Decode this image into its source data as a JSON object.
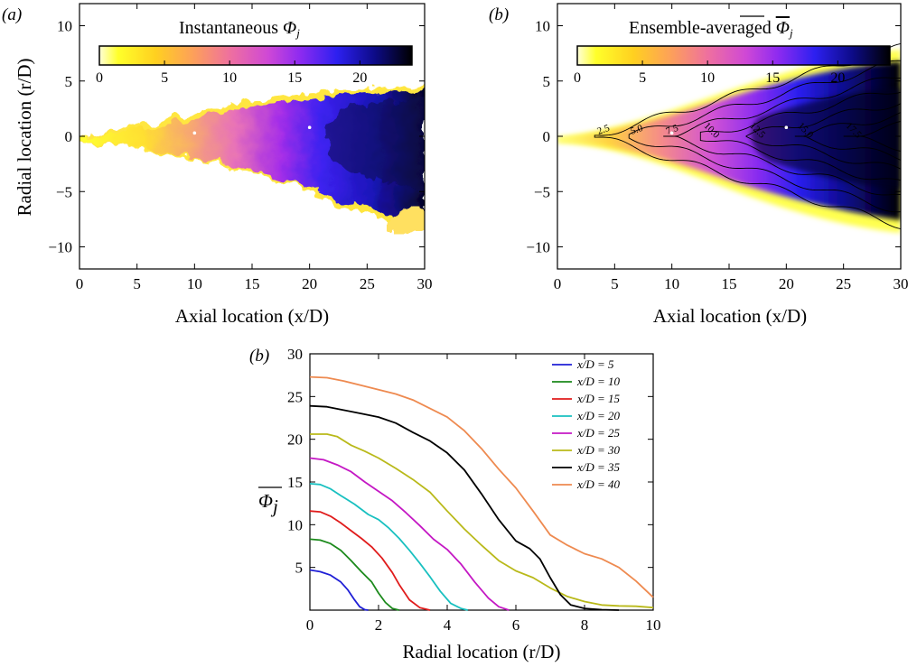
{
  "figure": {
    "panel_a": {
      "tag": "(a)",
      "colorbar_title": "Instantaneous ",
      "colorbar_symbol": "Φ",
      "colorbar_sub": "j",
      "xlabel": "Axial location (x/D)",
      "ylabel": "Radial location (r/D)"
    },
    "panel_b": {
      "tag": "(b)",
      "colorbar_title": "Ensemble-averaged ",
      "colorbar_symbol": "Φ",
      "colorbar_sub": "j",
      "xlabel": "Axial location (x/D)"
    },
    "panel_c": {
      "tag": "(b)",
      "xlabel": "Radial location (r/D)",
      "ylabel_symbol": "Φ",
      "ylabel_sub": "j"
    }
  },
  "chart_data": [
    {
      "type": "heatmap",
      "name": "Instantaneous",
      "xlim": [
        0,
        30
      ],
      "ylim": [
        -12,
        12
      ],
      "x_ticks": [
        0,
        5,
        10,
        15,
        20,
        25,
        30
      ],
      "y_ticks": [
        -10,
        -5,
        0,
        5,
        10
      ],
      "colorbar": {
        "min": 0,
        "max": 24,
        "ticks": [
          0,
          5,
          10,
          15,
          20
        ]
      },
      "probe_points": [
        [
          10,
          0.3
        ],
        [
          20,
          0.8
        ]
      ]
    },
    {
      "type": "heatmap",
      "name": "Ensemble-averaged",
      "xlim": [
        0,
        30
      ],
      "ylim": [
        -12,
        12
      ],
      "x_ticks": [
        0,
        5,
        10,
        15,
        20,
        25,
        30
      ],
      "y_ticks": [
        -10,
        -5,
        0,
        5,
        10
      ],
      "colorbar": {
        "min": 0,
        "max": 24,
        "ticks": [
          0,
          5,
          10,
          15,
          20
        ]
      },
      "contour_levels": [
        {
          "level": 2.5,
          "label": "2.5",
          "label_x": 3.2
        },
        {
          "level": 5.0,
          "label": "5.0",
          "label_x": 6.1
        },
        {
          "level": 7.5,
          "label": "7.5",
          "label_x": 9.2
        },
        {
          "level": 10.0,
          "label": "10.0",
          "label_x": 12.4
        },
        {
          "level": 12.5,
          "label": "12.5",
          "label_x": 16.4
        },
        {
          "level": 15.0,
          "label": "15.0",
          "label_x": 20.6
        },
        {
          "level": 17.5,
          "label": "17.5",
          "label_x": 24.8
        }
      ],
      "probe_points": [
        [
          10,
          0.3
        ],
        [
          20,
          0.8
        ]
      ]
    },
    {
      "type": "line",
      "xlim": [
        0,
        10
      ],
      "ylim": [
        0,
        30
      ],
      "x_ticks": [
        0,
        2,
        4,
        6,
        8,
        10
      ],
      "y_ticks": [
        5,
        10,
        15,
        20,
        25,
        30
      ],
      "legend_placement": "top-right",
      "series": [
        {
          "name": "x/D = 5",
          "color": "#1f1fd6",
          "points": [
            [
              0,
              4.7
            ],
            [
              0.3,
              4.5
            ],
            [
              0.6,
              4.1
            ],
            [
              0.9,
              3.3
            ],
            [
              1.1,
              2.4
            ],
            [
              1.3,
              1.2
            ],
            [
              1.45,
              0.4
            ],
            [
              1.6,
              0.05
            ],
            [
              1.7,
              0
            ]
          ]
        },
        {
          "name": "x/D = 10",
          "color": "#1c8a1c",
          "points": [
            [
              0,
              8.3
            ],
            [
              0.3,
              8.2
            ],
            [
              0.6,
              7.8
            ],
            [
              0.9,
              7.0
            ],
            [
              1.2,
              5.8
            ],
            [
              1.5,
              4.5
            ],
            [
              1.8,
              3.3
            ],
            [
              2.0,
              2.0
            ],
            [
              2.2,
              0.9
            ],
            [
              2.4,
              0.2
            ],
            [
              2.6,
              0
            ]
          ]
        },
        {
          "name": "x/D = 15",
          "color": "#e01c1c",
          "points": [
            [
              0,
              11.6
            ],
            [
              0.3,
              11.5
            ],
            [
              0.6,
              11.0
            ],
            [
              0.9,
              10.2
            ],
            [
              1.2,
              9.3
            ],
            [
              1.5,
              8.4
            ],
            [
              1.8,
              7.4
            ],
            [
              2.1,
              6.1
            ],
            [
              2.4,
              4.4
            ],
            [
              2.6,
              3.0
            ],
            [
              2.9,
              1.2
            ],
            [
              3.2,
              0.3
            ],
            [
              3.5,
              0
            ]
          ]
        },
        {
          "name": "x/D = 20",
          "color": "#19c0c0",
          "points": [
            [
              0,
              14.8
            ],
            [
              0.3,
              14.7
            ],
            [
              0.6,
              14.2
            ],
            [
              0.9,
              13.4
            ],
            [
              1.3,
              12.4
            ],
            [
              1.7,
              11.2
            ],
            [
              2.0,
              10.6
            ],
            [
              2.3,
              9.6
            ],
            [
              2.6,
              8.4
            ],
            [
              2.9,
              7.0
            ],
            [
              3.2,
              5.5
            ],
            [
              3.5,
              3.9
            ],
            [
              3.8,
              2.2
            ],
            [
              4.1,
              0.8
            ],
            [
              4.4,
              0.2
            ],
            [
              4.6,
              0
            ]
          ]
        },
        {
          "name": "x/D = 25",
          "color": "#c418c4",
          "points": [
            [
              0,
              17.8
            ],
            [
              0.4,
              17.6
            ],
            [
              0.8,
              17.0
            ],
            [
              1.2,
              16.2
            ],
            [
              1.6,
              15.0
            ],
            [
              2.0,
              13.9
            ],
            [
              2.4,
              12.8
            ],
            [
              2.8,
              11.4
            ],
            [
              3.2,
              9.9
            ],
            [
              3.6,
              8.3
            ],
            [
              4.0,
              7.1
            ],
            [
              4.4,
              5.4
            ],
            [
              4.8,
              3.3
            ],
            [
              5.2,
              1.4
            ],
            [
              5.5,
              0.4
            ],
            [
              5.8,
              0
            ]
          ]
        },
        {
          "name": "x/D = 30",
          "color": "#b9b91a",
          "points": [
            [
              0,
              20.6
            ],
            [
              0.5,
              20.6
            ],
            [
              0.8,
              20.3
            ],
            [
              1.2,
              19.3
            ],
            [
              1.6,
              18.6
            ],
            [
              2.0,
              17.8
            ],
            [
              2.5,
              16.6
            ],
            [
              3.0,
              15.3
            ],
            [
              3.5,
              13.8
            ],
            [
              4.0,
              11.6
            ],
            [
              4.5,
              9.5
            ],
            [
              5.0,
              7.6
            ],
            [
              5.5,
              5.8
            ],
            [
              6.0,
              4.6
            ],
            [
              6.5,
              3.8
            ],
            [
              7.0,
              2.6
            ],
            [
              7.5,
              1.6
            ],
            [
              8.0,
              1.0
            ],
            [
              8.5,
              0.6
            ],
            [
              9.0,
              0.5
            ],
            [
              9.5,
              0.45
            ],
            [
              10.0,
              0.3
            ]
          ]
        },
        {
          "name": "x/D = 35",
          "color": "#000000",
          "points": [
            [
              0,
              23.9
            ],
            [
              0.5,
              23.8
            ],
            [
              1.0,
              23.4
            ],
            [
              1.5,
              23.0
            ],
            [
              2.0,
              22.6
            ],
            [
              2.5,
              21.9
            ],
            [
              3.0,
              20.8
            ],
            [
              3.5,
              19.8
            ],
            [
              4.0,
              18.4
            ],
            [
              4.5,
              16.4
            ],
            [
              5.0,
              13.6
            ],
            [
              5.5,
              10.6
            ],
            [
              6.0,
              8.1
            ],
            [
              6.4,
              7.2
            ],
            [
              6.7,
              6.0
            ],
            [
              7.0,
              3.8
            ],
            [
              7.3,
              1.8
            ],
            [
              7.6,
              0.6
            ],
            [
              8.0,
              0.2
            ],
            [
              8.5,
              0.05
            ],
            [
              9.0,
              0
            ]
          ]
        },
        {
          "name": "x/D = 40",
          "color": "#ee8a50",
          "points": [
            [
              0,
              27.3
            ],
            [
              0.5,
              27.2
            ],
            [
              1.0,
              26.8
            ],
            [
              1.5,
              26.3
            ],
            [
              2.0,
              25.8
            ],
            [
              2.5,
              25.3
            ],
            [
              3.0,
              24.6
            ],
            [
              3.5,
              23.6
            ],
            [
              4.0,
              22.6
            ],
            [
              4.5,
              21.0
            ],
            [
              5.0,
              18.9
            ],
            [
              5.5,
              16.5
            ],
            [
              6.0,
              14.3
            ],
            [
              6.5,
              11.6
            ],
            [
              7.0,
              8.8
            ],
            [
              7.5,
              7.6
            ],
            [
              8.0,
              6.6
            ],
            [
              8.5,
              6.0
            ],
            [
              9.0,
              5.0
            ],
            [
              9.5,
              3.4
            ],
            [
              10.0,
              1.5
            ]
          ]
        }
      ]
    }
  ]
}
